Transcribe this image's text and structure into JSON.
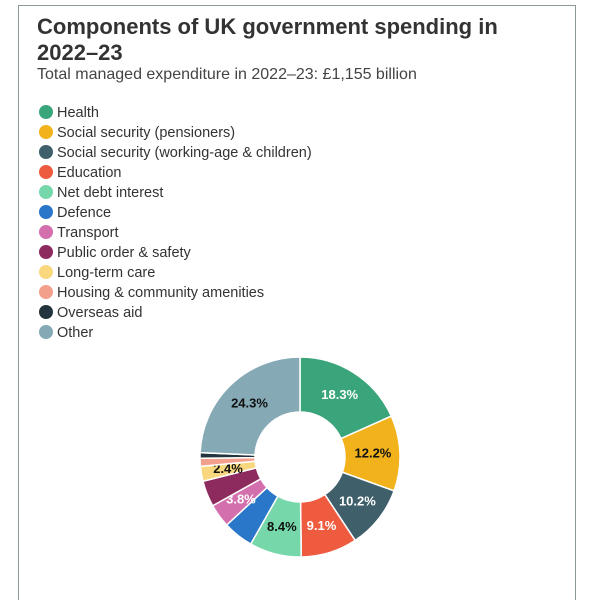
{
  "chart_data": {
    "type": "donut",
    "title": "Components of UK government spending in 2022–23",
    "subtitle": "Total managed expenditure in 2022–23: £1,155 billion",
    "categories": [
      "Health",
      "Social security (pensioners)",
      "Social security (working-age & children)",
      "Education",
      "Net debt interest",
      "Defence",
      "Transport",
      "Public order & safety",
      "Long-term care",
      "Housing & community amenities",
      "Overseas aid",
      "Other"
    ],
    "values": [
      18.3,
      12.2,
      10.2,
      9.1,
      8.4,
      4.9,
      3.8,
      4.2,
      2.4,
      1.3,
      0.9,
      24.3
    ],
    "value_labels": [
      "18.3%",
      "12.2%",
      "10.2%",
      "9.1%",
      "8.4%",
      null,
      "3.8%",
      null,
      "2.4%",
      null,
      null,
      "24.3%"
    ],
    "colors": [
      "#3aa57a",
      "#f2b21b",
      "#3f5f6b",
      "#ef5b3f",
      "#76d8aa",
      "#2a77c9",
      "#d46fae",
      "#8e2b5e",
      "#f9d77e",
      "#f2a08c",
      "#22343d",
      "#85a9b5"
    ]
  }
}
